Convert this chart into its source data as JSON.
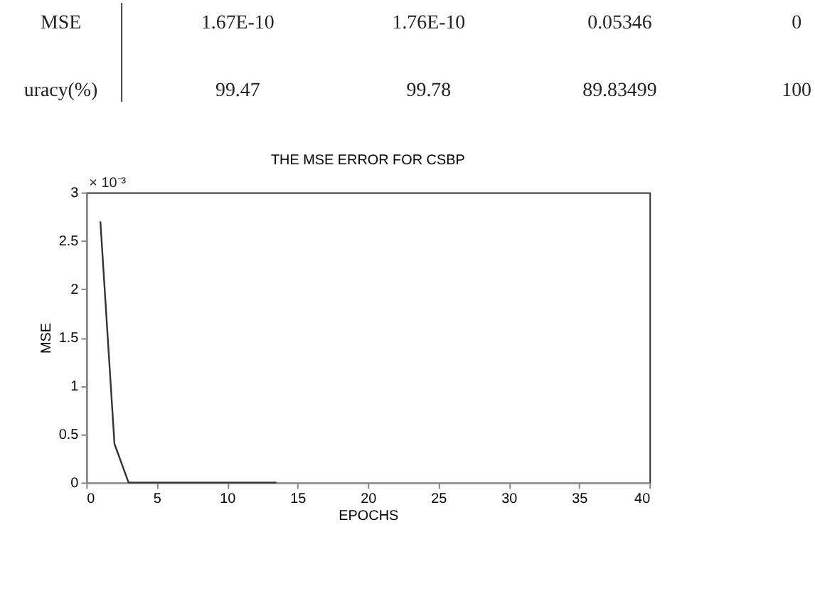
{
  "chart_data": {
    "type": "line",
    "title": "THE  MSE ERROR FOR CSBP",
    "xlabel": "EPOCHS",
    "ylabel": "MSE",
    "x": [
      1,
      2,
      3,
      13.5
    ],
    "series": [
      {
        "color": "#333333",
        "values": [
          2.7,
          0.4,
          0,
          0
        ]
      }
    ],
    "xlim": [
      0,
      40
    ],
    "xticks": [
      0,
      5,
      10,
      15,
      20,
      25,
      30,
      35,
      40
    ],
    "ylim": [
      0,
      3
    ],
    "yticks": [
      0,
      0.5,
      1,
      1.5,
      2,
      2.5,
      3
    ],
    "grid": false,
    "marker": "none",
    "line_style": "solid",
    "annotations": [
      "MSE",
      "1.67E-10",
      "1.76E-10",
      "0.05346",
      "0",
      "uracy(%)",
      "99.47",
      "99.78",
      "89.83499",
      "100",
      "× 10⁻³"
    ]
  }
}
